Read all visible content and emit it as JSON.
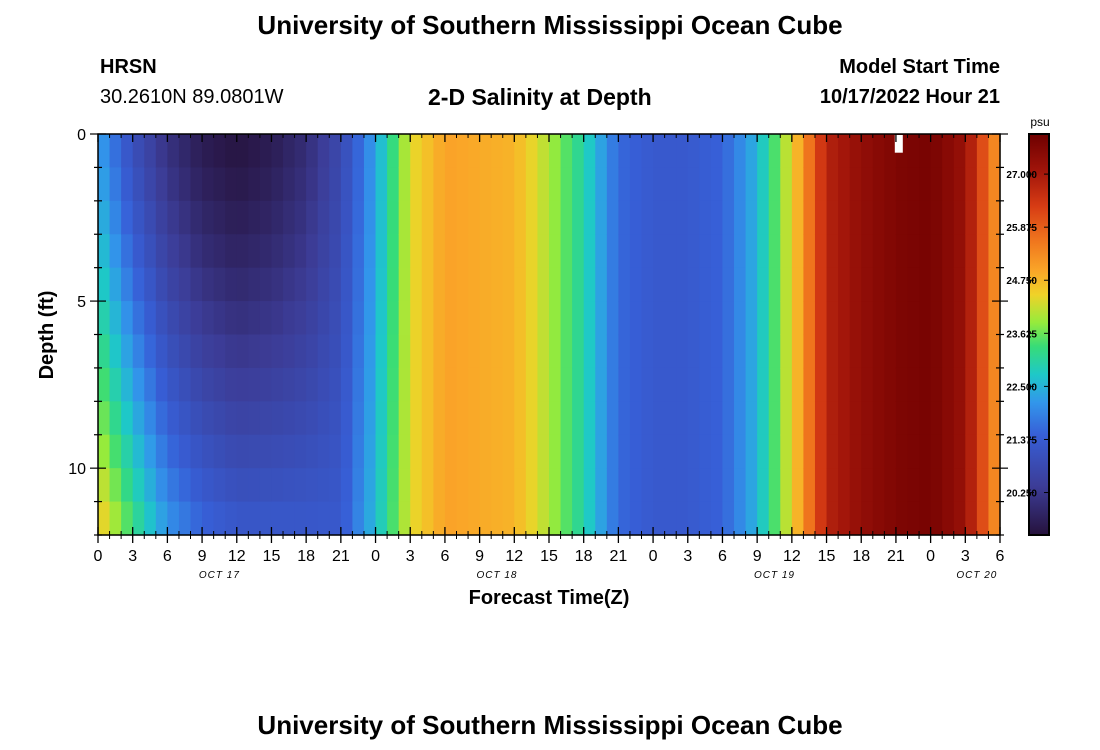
{
  "header": {
    "title": "University of Southern Mississippi Ocean Cube",
    "station": "HRSN",
    "coords": "30.2610N  89.0801W",
    "plot_title": "2-D Salinity at Depth",
    "model_start_label": "Model Start Time",
    "model_start_value": "10/17/2022 Hour 21"
  },
  "footer": {
    "title": "University of Southern Mississippi Ocean Cube"
  },
  "chart_data": {
    "type": "heatmap",
    "xlabel": "Forecast Time(Z)",
    "ylabel": "Depth (ft)",
    "x_range_hours": [
      0,
      78
    ],
    "y_range_ft": [
      0,
      12
    ],
    "y_ticks": [
      0,
      5,
      10
    ],
    "x_tick_labels": [
      "0",
      "3",
      "6",
      "9",
      "12",
      "15",
      "18",
      "21",
      "0",
      "3",
      "6",
      "9",
      "12",
      "15",
      "18",
      "21",
      "0",
      "3",
      "6",
      "9",
      "12",
      "15",
      "18",
      "21",
      "0",
      "3",
      "6"
    ],
    "day_labels": [
      "OCT 17",
      "OCT 18",
      "OCT 19",
      "OCT 20"
    ],
    "colorbar": {
      "unit": "psu",
      "min": 19.35,
      "max": 27.85,
      "ticks": [
        "27.000",
        "25.875",
        "24.750",
        "23.625",
        "22.500",
        "21.375",
        "20.250"
      ]
    },
    "surface_salinity_by_hour": [
      [
        0,
        22.3
      ],
      [
        3,
        21.0
      ],
      [
        6,
        20.1
      ],
      [
        9,
        19.6
      ],
      [
        12,
        19.4
      ],
      [
        15,
        19.6
      ],
      [
        18,
        20.0
      ],
      [
        21,
        20.8
      ],
      [
        24,
        22.3
      ],
      [
        27,
        24.3
      ],
      [
        30,
        25.0
      ],
      [
        33,
        24.9
      ],
      [
        36,
        24.8
      ],
      [
        39,
        24.0
      ],
      [
        42,
        23.0
      ],
      [
        45,
        21.6
      ],
      [
        48,
        21.3
      ],
      [
        51,
        21.3
      ],
      [
        54,
        21.5
      ],
      [
        57,
        22.5
      ],
      [
        60,
        24.4
      ],
      [
        63,
        26.8
      ],
      [
        66,
        27.3
      ],
      [
        69,
        27.6
      ],
      [
        72,
        27.7
      ],
      [
        75,
        27.2
      ],
      [
        78,
        25.0
      ]
    ],
    "bottom_salinity_by_hour": [
      [
        0,
        24.7
      ],
      [
        3,
        23.4
      ],
      [
        6,
        22.2
      ],
      [
        9,
        21.6
      ],
      [
        12,
        21.3
      ],
      [
        15,
        21.3
      ],
      [
        18,
        21.3
      ],
      [
        21,
        21.3
      ],
      [
        24,
        22.6
      ],
      [
        27,
        24.3
      ],
      [
        30,
        25.0
      ],
      [
        33,
        24.9
      ],
      [
        36,
        24.8
      ],
      [
        39,
        24.0
      ],
      [
        42,
        23.0
      ],
      [
        45,
        21.6
      ],
      [
        48,
        21.3
      ],
      [
        51,
        21.3
      ],
      [
        54,
        21.5
      ],
      [
        57,
        22.5
      ],
      [
        60,
        24.4
      ],
      [
        63,
        26.8
      ],
      [
        66,
        27.3
      ],
      [
        69,
        27.6
      ],
      [
        72,
        27.7
      ],
      [
        75,
        27.2
      ],
      [
        78,
        25.0
      ]
    ],
    "annotation": {
      "type": "white-marker",
      "hour": 69.25,
      "depth_ft": [
        0,
        0.5
      ]
    }
  }
}
